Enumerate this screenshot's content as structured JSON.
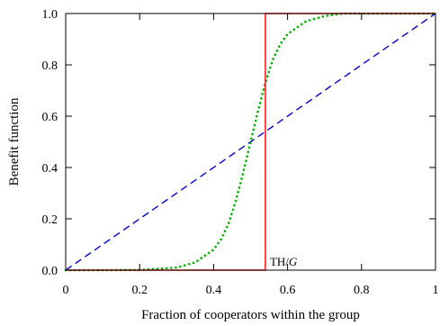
{
  "chart_data": {
    "type": "line",
    "xlabel": "Fraction of cooperators within the group",
    "ylabel": "Benefit function",
    "xlim": [
      0,
      1
    ],
    "ylim": [
      0,
      1
    ],
    "x_ticks": [
      0,
      0.2,
      0.4,
      0.6,
      0.8,
      1
    ],
    "x_tick_labels": [
      "0",
      "0.2",
      "0.4",
      "0.6",
      "0.8",
      "1"
    ],
    "y_ticks": [
      0,
      0.2,
      0.4,
      0.6,
      0.8,
      1
    ],
    "y_tick_labels": [
      "0.0",
      "0.2",
      "0.4",
      "0.6",
      "0.8",
      "1.0"
    ],
    "grid": false,
    "annotation": {
      "text_main": "TH/",
      "text_italic": "G",
      "x": 0.54,
      "y": 0
    },
    "series": [
      {
        "style": "dashed",
        "color": "#0000cc",
        "x": [
          0,
          1
        ],
        "y": [
          0,
          1
        ]
      },
      {
        "style": "dotted",
        "color": "#00b000",
        "x": [
          0,
          0.1,
          0.2,
          0.3,
          0.35,
          0.4,
          0.42,
          0.44,
          0.46,
          0.48,
          0.5,
          0.52,
          0.54,
          0.56,
          0.58,
          0.6,
          0.65,
          0.7,
          0.75,
          0.8,
          0.9,
          1
        ],
        "y": [
          0,
          0,
          0.001,
          0.01,
          0.03,
          0.08,
          0.12,
          0.18,
          0.27,
          0.38,
          0.5,
          0.62,
          0.73,
          0.82,
          0.88,
          0.92,
          0.97,
          0.99,
          1,
          1,
          1,
          1
        ]
      },
      {
        "style": "solid",
        "color": "#ff0000",
        "x": [
          0,
          0.54,
          0.54,
          1
        ],
        "y": [
          0,
          0,
          1,
          1
        ]
      }
    ]
  }
}
